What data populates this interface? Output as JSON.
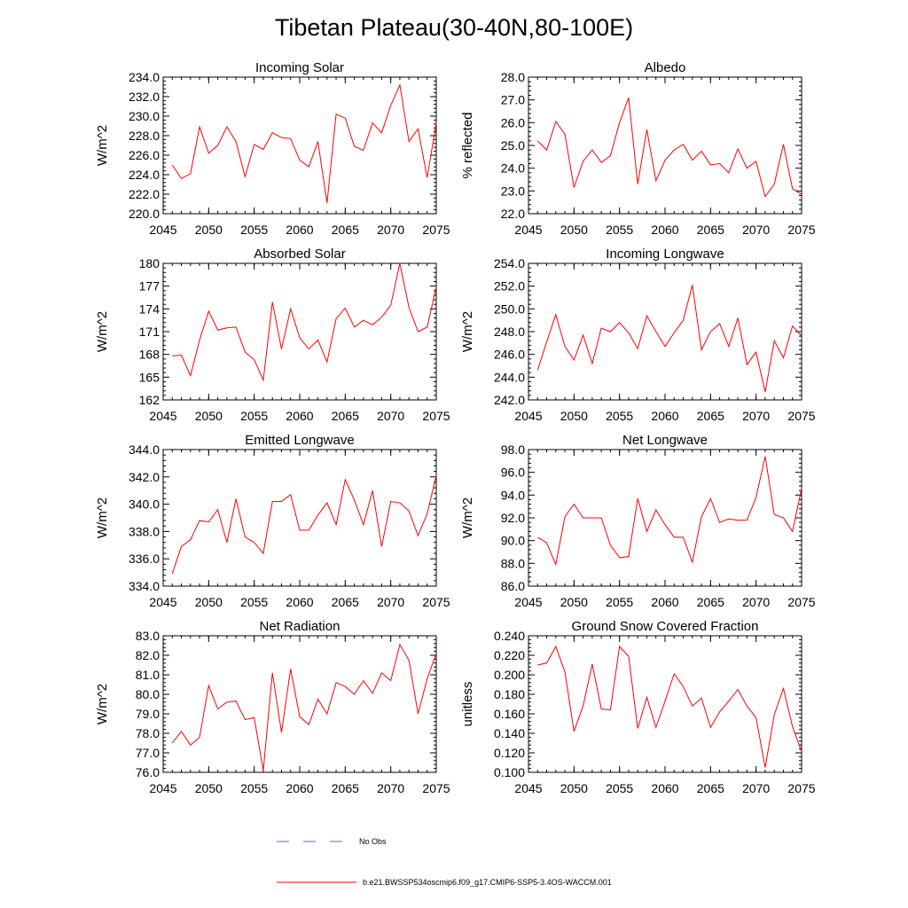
{
  "figure": {
    "title": "Tibetan Plateau(30-40N,80-100E)",
    "legend": [
      {
        "label": "No Obs",
        "color": "#6a6acd",
        "style": "dashed"
      },
      {
        "label": "b.e21.BWSSP534oscmip6.f09_g17.CMIP6-SSP5-3.4OS-WACCM.001",
        "color": "#ff0000",
        "style": "solid"
      }
    ]
  },
  "chart_data": [
    {
      "type": "line",
      "title": "Incoming Solar",
      "ylabel": "W/m^2",
      "xlim": [
        2045,
        2075
      ],
      "ylim": [
        220,
        234
      ],
      "xticks": [
        2045,
        2050,
        2055,
        2060,
        2065,
        2070,
        2075
      ],
      "xtick_labels": [
        "2045",
        "2050",
        "2055",
        "2060",
        "2065",
        "2070",
        "2075"
      ],
      "yticks": [
        220,
        222,
        224,
        226,
        228,
        230,
        232,
        234
      ],
      "ytick_labels": [
        "220.0",
        "222.0",
        "224.0",
        "226.0",
        "228.0",
        "230.0",
        "232.0",
        "234.0"
      ],
      "x": [
        2046,
        2047,
        2048,
        2049,
        2050,
        2051,
        2052,
        2053,
        2054,
        2055,
        2056,
        2057,
        2058,
        2059,
        2060,
        2061,
        2062,
        2063,
        2064,
        2065,
        2066,
        2067,
        2068,
        2069,
        2070,
        2071,
        2072,
        2073,
        2074,
        2075
      ],
      "series": [
        {
          "name": "b.e21.BWSSP534oscmip6.f09_g17.CMIP6-SSP5-3.4OS-WACCM.001",
          "color": "#ff0000",
          "values": [
            225.0,
            223.6,
            224.1,
            228.9,
            226.2,
            227.0,
            228.9,
            227.4,
            223.8,
            227.1,
            226.6,
            228.3,
            227.8,
            227.7,
            225.5,
            224.8,
            227.4,
            221.1,
            230.2,
            229.8,
            226.9,
            226.5,
            229.3,
            228.3,
            231.1,
            233.2,
            227.4,
            228.7,
            223.7,
            229.3
          ]
        }
      ]
    },
    {
      "type": "line",
      "title": "Albedo",
      "ylabel": "% reflected",
      "xlim": [
        2045,
        2075
      ],
      "ylim": [
        22,
        28
      ],
      "xticks": [
        2045,
        2050,
        2055,
        2060,
        2065,
        2070,
        2075
      ],
      "xtick_labels": [
        "2045",
        "2050",
        "2055",
        "2060",
        "2065",
        "2070",
        "2075"
      ],
      "yticks": [
        22,
        23,
        24,
        25,
        26,
        27,
        28
      ],
      "ytick_labels": [
        "22.0",
        "23.0",
        "24.0",
        "25.0",
        "26.0",
        "27.0",
        "28.0"
      ],
      "x": [
        2046,
        2047,
        2048,
        2049,
        2050,
        2051,
        2052,
        2053,
        2054,
        2055,
        2056,
        2057,
        2058,
        2059,
        2060,
        2061,
        2062,
        2063,
        2064,
        2065,
        2066,
        2067,
        2068,
        2069,
        2070,
        2071,
        2072,
        2073,
        2074,
        2075
      ],
      "series": [
        {
          "name": "b.e21.BWSSP534oscmip6.f09_g17.CMIP6-SSP5-3.4OS-WACCM.001",
          "color": "#ff0000",
          "values": [
            25.2,
            24.8,
            26.05,
            25.5,
            23.15,
            24.3,
            24.8,
            24.25,
            24.55,
            26.0,
            27.1,
            23.3,
            25.7,
            23.45,
            24.35,
            24.8,
            25.05,
            24.35,
            24.75,
            24.15,
            24.2,
            23.8,
            24.85,
            24.0,
            24.3,
            22.75,
            23.3,
            25.05,
            23.1,
            22.85
          ]
        }
      ]
    },
    {
      "type": "line",
      "title": "Absorbed Solar",
      "ylabel": "W/m^2",
      "xlim": [
        2045,
        2075
      ],
      "ylim": [
        162,
        180
      ],
      "xticks": [
        2045,
        2050,
        2055,
        2060,
        2065,
        2070,
        2075
      ],
      "xtick_labels": [
        "2045",
        "2050",
        "2055",
        "2060",
        "2065",
        "2070",
        "2075"
      ],
      "yticks": [
        162,
        165,
        168,
        171,
        174,
        177,
        180
      ],
      "ytick_labels": [
        "162",
        "165",
        "168",
        "171",
        "174",
        "177",
        "180"
      ],
      "x": [
        2046,
        2047,
        2048,
        2049,
        2050,
        2051,
        2052,
        2053,
        2054,
        2055,
        2056,
        2057,
        2058,
        2059,
        2060,
        2061,
        2062,
        2063,
        2064,
        2065,
        2066,
        2067,
        2068,
        2069,
        2070,
        2071,
        2072,
        2073,
        2074,
        2075
      ],
      "series": [
        {
          "name": "b.e21.BWSSP534oscmip6.f09_g17.CMIP6-SSP5-3.4OS-WACCM.001",
          "color": "#ff0000",
          "values": [
            167.8,
            167.9,
            165.2,
            169.9,
            173.7,
            171.2,
            171.5,
            171.6,
            168.3,
            167.3,
            164.6,
            174.9,
            168.7,
            174.0,
            170.2,
            168.7,
            169.9,
            167.0,
            172.7,
            174.1,
            171.6,
            172.5,
            171.9,
            172.9,
            174.5,
            180.0,
            174.2,
            171.0,
            171.6,
            176.9
          ]
        }
      ]
    },
    {
      "type": "line",
      "title": "Incoming Longwave",
      "ylabel": "W/m^2",
      "xlim": [
        2045,
        2075
      ],
      "ylim": [
        242,
        254
      ],
      "xticks": [
        2045,
        2050,
        2055,
        2060,
        2065,
        2070,
        2075
      ],
      "xtick_labels": [
        "2045",
        "2050",
        "2055",
        "2060",
        "2065",
        "2070",
        "2075"
      ],
      "yticks": [
        242,
        244,
        246,
        248,
        250,
        252,
        254
      ],
      "ytick_labels": [
        "242.0",
        "244.0",
        "246.0",
        "248.0",
        "250.0",
        "252.0",
        "254.0"
      ],
      "x": [
        2046,
        2047,
        2048,
        2049,
        2050,
        2051,
        2052,
        2053,
        2054,
        2055,
        2056,
        2057,
        2058,
        2059,
        2060,
        2061,
        2062,
        2063,
        2064,
        2065,
        2066,
        2067,
        2068,
        2069,
        2070,
        2071,
        2072,
        2073,
        2074,
        2075
      ],
      "series": [
        {
          "name": "b.e21.BWSSP534oscmip6.f09_g17.CMIP6-SSP5-3.4OS-WACCM.001",
          "color": "#ff0000",
          "values": [
            244.6,
            247.1,
            249.5,
            246.7,
            245.5,
            247.7,
            245.2,
            248.3,
            248.0,
            248.8,
            247.9,
            246.5,
            249.4,
            248.0,
            246.7,
            247.9,
            249.0,
            252.1,
            246.4,
            248.0,
            248.7,
            246.7,
            249.2,
            245.1,
            246.2,
            242.7,
            247.2,
            245.7,
            248.5,
            247.6
          ]
        }
      ]
    },
    {
      "type": "line",
      "title": "Emitted Longwave",
      "ylabel": "W/m^2",
      "xlim": [
        2045,
        2075
      ],
      "ylim": [
        334,
        344
      ],
      "xticks": [
        2045,
        2050,
        2055,
        2060,
        2065,
        2070,
        2075
      ],
      "xtick_labels": [
        "2045",
        "2050",
        "2055",
        "2060",
        "2065",
        "2070",
        "2075"
      ],
      "yticks": [
        334,
        336,
        338,
        340,
        342,
        344
      ],
      "ytick_labels": [
        "334.0",
        "336.0",
        "338.0",
        "340.0",
        "342.0",
        "344.0"
      ],
      "x": [
        2046,
        2047,
        2048,
        2049,
        2050,
        2051,
        2052,
        2053,
        2054,
        2055,
        2056,
        2057,
        2058,
        2059,
        2060,
        2061,
        2062,
        2063,
        2064,
        2065,
        2066,
        2067,
        2068,
        2069,
        2070,
        2071,
        2072,
        2073,
        2074,
        2075
      ],
      "series": [
        {
          "name": "b.e21.BWSSP534oscmip6.f09_g17.CMIP6-SSP5-3.4OS-WACCM.001",
          "color": "#ff0000",
          "values": [
            334.9,
            336.9,
            337.4,
            338.8,
            338.7,
            339.6,
            337.2,
            340.4,
            337.6,
            337.2,
            336.4,
            340.2,
            340.2,
            340.7,
            338.1,
            338.1,
            339.2,
            340.1,
            338.5,
            341.8,
            340.3,
            338.5,
            341.0,
            336.9,
            340.2,
            340.1,
            339.5,
            337.7,
            339.3,
            342.1
          ]
        }
      ]
    },
    {
      "type": "line",
      "title": "Net Longwave",
      "ylabel": "W/m^2",
      "xlim": [
        2045,
        2075
      ],
      "ylim": [
        86,
        98
      ],
      "xticks": [
        2045,
        2050,
        2055,
        2060,
        2065,
        2070,
        2075
      ],
      "xtick_labels": [
        "2045",
        "2050",
        "2055",
        "2060",
        "2065",
        "2070",
        "2075"
      ],
      "yticks": [
        86,
        88,
        90,
        92,
        94,
        96,
        98
      ],
      "ytick_labels": [
        "86.0",
        "88.0",
        "90.0",
        "92.0",
        "94.0",
        "96.0",
        "98.0"
      ],
      "x": [
        2046,
        2047,
        2048,
        2049,
        2050,
        2051,
        2052,
        2053,
        2054,
        2055,
        2056,
        2057,
        2058,
        2059,
        2060,
        2061,
        2062,
        2063,
        2064,
        2065,
        2066,
        2067,
        2068,
        2069,
        2070,
        2071,
        2072,
        2073,
        2074,
        2075
      ],
      "series": [
        {
          "name": "b.e21.BWSSP534oscmip6.f09_g17.CMIP6-SSP5-3.4OS-WACCM.001",
          "color": "#ff0000",
          "values": [
            90.3,
            89.8,
            87.9,
            92.1,
            93.2,
            92.0,
            92.0,
            92.0,
            89.6,
            88.5,
            88.6,
            93.7,
            90.8,
            92.7,
            91.4,
            90.3,
            90.3,
            88.1,
            92.1,
            93.7,
            91.6,
            91.9,
            91.8,
            91.8,
            93.8,
            97.4,
            92.3,
            92.0,
            90.8,
            94.6
          ]
        }
      ]
    },
    {
      "type": "line",
      "title": "Net Radiation",
      "ylabel": "W/m^2",
      "xlim": [
        2045,
        2075
      ],
      "ylim": [
        76,
        83
      ],
      "xticks": [
        2045,
        2050,
        2055,
        2060,
        2065,
        2070,
        2075
      ],
      "xtick_labels": [
        "2045",
        "2050",
        "2055",
        "2060",
        "2065",
        "2070",
        "2075"
      ],
      "yticks": [
        76,
        77,
        78,
        79,
        80,
        81,
        82,
        83
      ],
      "ytick_labels": [
        "76.0",
        "77.0",
        "78.0",
        "79.0",
        "80.0",
        "81.0",
        "82.0",
        "83.0"
      ],
      "x": [
        2046,
        2047,
        2048,
        2049,
        2050,
        2051,
        2052,
        2053,
        2054,
        2055,
        2056,
        2057,
        2058,
        2059,
        2060,
        2061,
        2062,
        2063,
        2064,
        2065,
        2066,
        2067,
        2068,
        2069,
        2070,
        2071,
        2072,
        2073,
        2074,
        2075
      ],
      "series": [
        {
          "name": "b.e21.BWSSP534oscmip6.f09_g17.CMIP6-SSP5-3.4OS-WACCM.001",
          "color": "#ff0000",
          "values": [
            77.5,
            78.1,
            77.4,
            77.8,
            80.45,
            79.25,
            79.6,
            79.65,
            78.7,
            78.8,
            76.1,
            81.1,
            78.05,
            81.3,
            78.85,
            78.45,
            79.75,
            79.0,
            80.6,
            80.4,
            80.0,
            80.7,
            80.05,
            81.1,
            80.7,
            82.55,
            81.75,
            79.0,
            80.8,
            82.1
          ]
        }
      ]
    },
    {
      "type": "line",
      "title": "Ground Snow Covered Fraction",
      "ylabel": "unitless",
      "xlim": [
        2045,
        2075
      ],
      "ylim": [
        0.1,
        0.24
      ],
      "xticks": [
        2045,
        2050,
        2055,
        2060,
        2065,
        2070,
        2075
      ],
      "xtick_labels": [
        "2045",
        "2050",
        "2055",
        "2060",
        "2065",
        "2070",
        "2075"
      ],
      "yticks": [
        0.1,
        0.12,
        0.14,
        0.16,
        0.18,
        0.2,
        0.22,
        0.24
      ],
      "ytick_labels": [
        "0.100",
        "0.120",
        "0.140",
        "0.160",
        "0.180",
        "0.200",
        "0.220",
        "0.240"
      ],
      "x": [
        2046,
        2047,
        2048,
        2049,
        2050,
        2051,
        2052,
        2053,
        2054,
        2055,
        2056,
        2057,
        2058,
        2059,
        2060,
        2061,
        2062,
        2063,
        2064,
        2065,
        2066,
        2067,
        2068,
        2069,
        2070,
        2071,
        2072,
        2073,
        2074,
        2075
      ],
      "series": [
        {
          "name": "b.e21.BWSSP534oscmip6.f09_g17.CMIP6-SSP5-3.4OS-WACCM.001",
          "color": "#ff0000",
          "values": [
            0.21,
            0.212,
            0.229,
            0.203,
            0.142,
            0.168,
            0.211,
            0.165,
            0.164,
            0.229,
            0.219,
            0.145,
            0.177,
            0.146,
            0.173,
            0.201,
            0.188,
            0.168,
            0.176,
            0.146,
            0.162,
            0.173,
            0.185,
            0.168,
            0.156,
            0.105,
            0.159,
            0.186,
            0.147,
            0.121
          ]
        }
      ]
    }
  ]
}
